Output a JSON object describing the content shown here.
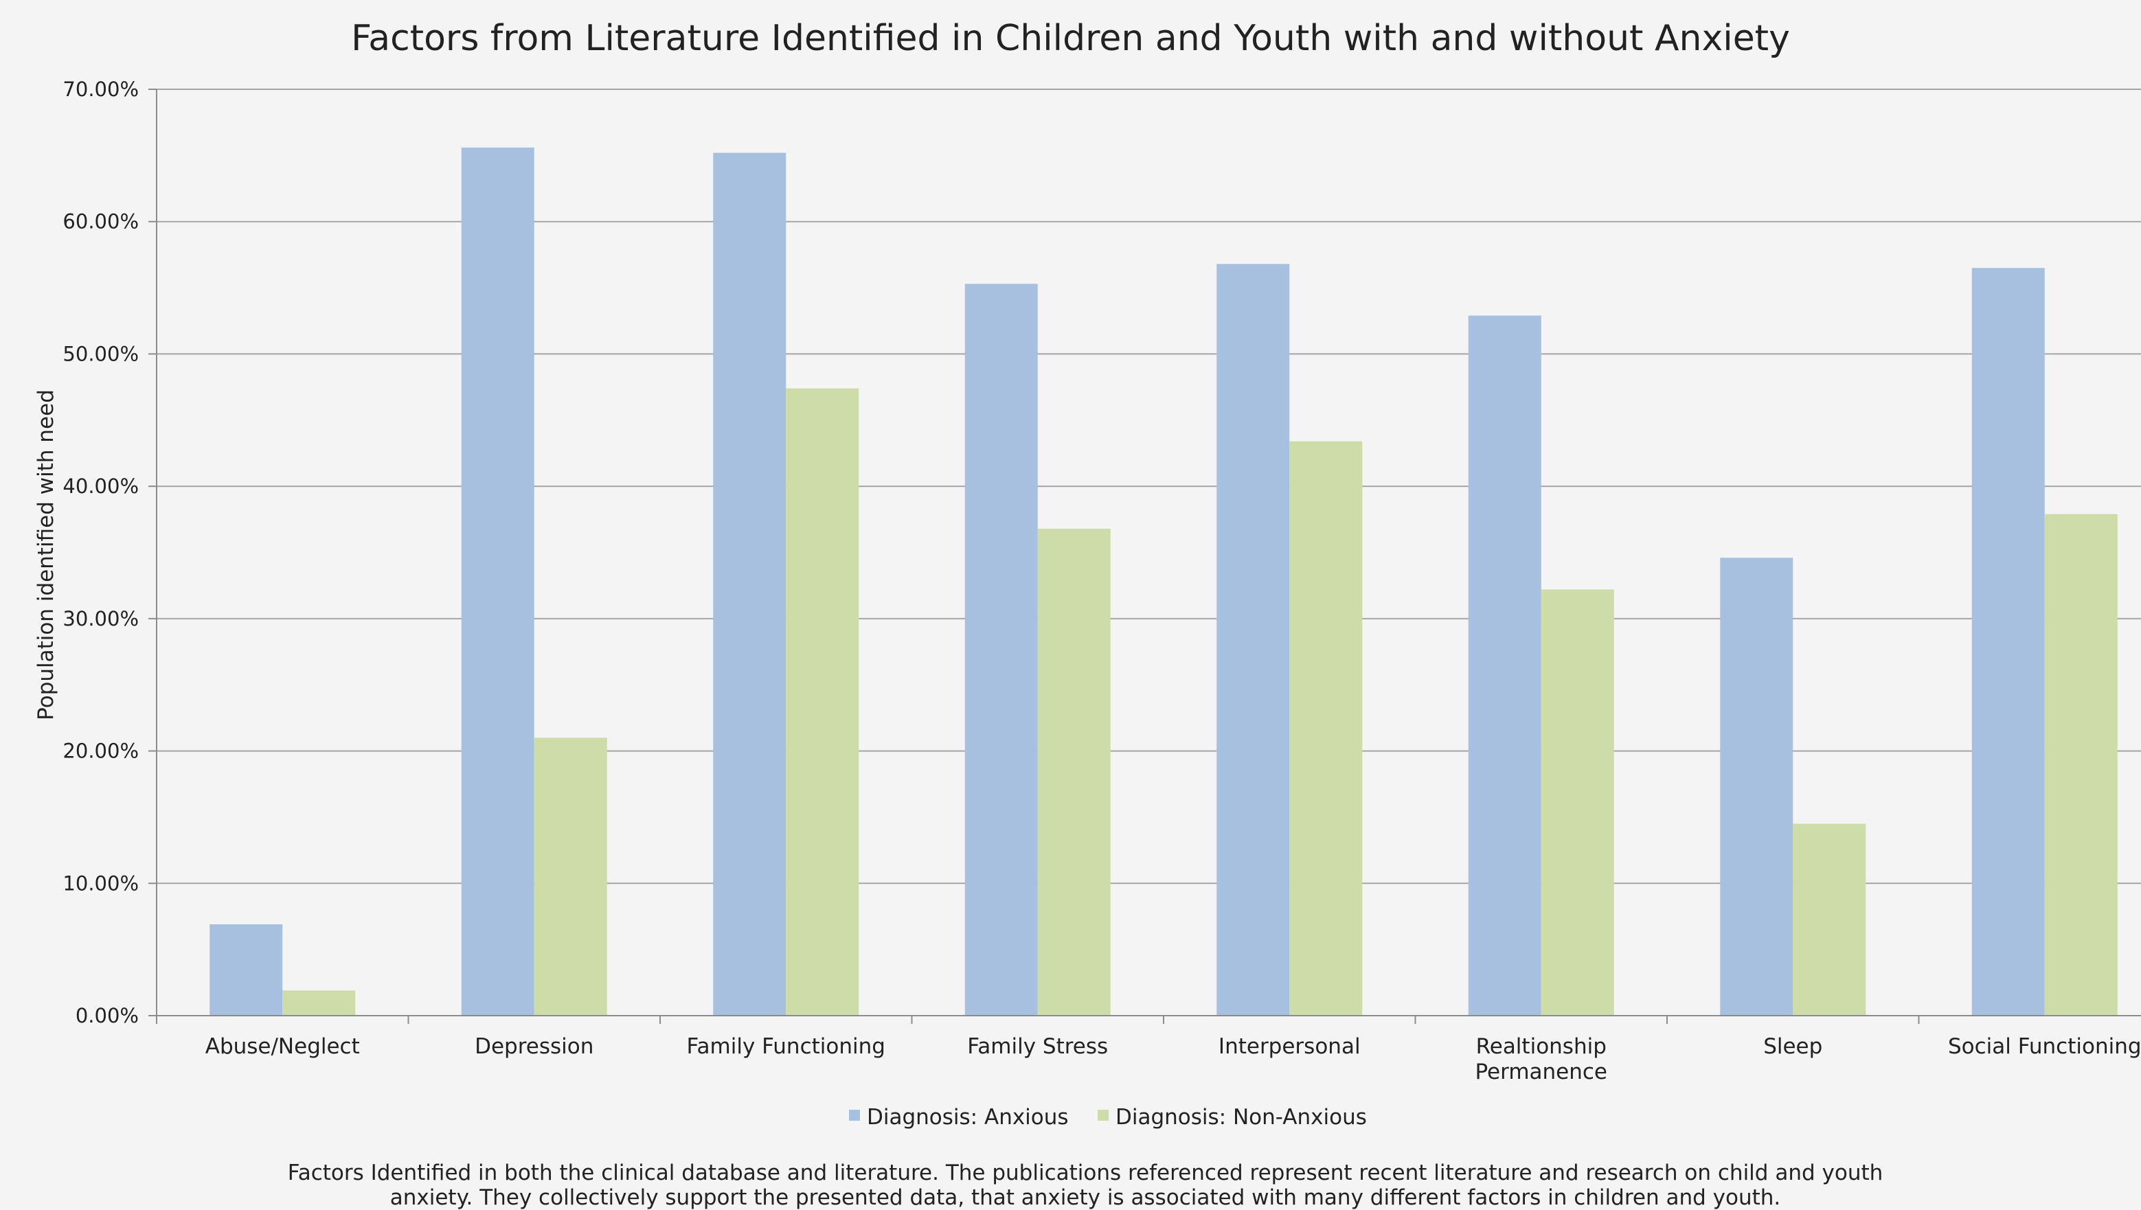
{
  "chart_data": {
    "type": "bar",
    "title": "Factors from Literature Identified in Children and Youth with and without Anxiety",
    "ylabel": "Population identified with need",
    "xlabel": "",
    "ylim": [
      0,
      70
    ],
    "y_ticks": [
      "0.00%",
      "10.00%",
      "20.00%",
      "30.00%",
      "40.00%",
      "50.00%",
      "60.00%",
      "70.00%"
    ],
    "grid": true,
    "legend_position": "bottom",
    "categories": [
      [
        "Abuse/Neglect"
      ],
      [
        "Depression"
      ],
      [
        "Family Functioning"
      ],
      [
        "Family Stress"
      ],
      [
        "Interpersonal"
      ],
      [
        "Realtionship",
        "Permanence"
      ],
      [
        "Sleep"
      ],
      [
        "Social Functioning"
      ]
    ],
    "series": [
      {
        "name": "Diagnosis: Anxious",
        "color": "#a7c0df",
        "values": [
          6.9,
          65.6,
          65.2,
          55.3,
          56.8,
          52.9,
          34.6,
          56.5
        ]
      },
      {
        "name": "Diagnosis: Non-Anxious",
        "color": "#cddca8",
        "values": [
          1.9,
          21.0,
          47.4,
          36.8,
          43.4,
          32.2,
          14.5,
          37.9
        ]
      }
    ]
  },
  "caption": {
    "line1": "Factors Identified in both the clinical database and literature. The publications referenced represent recent literature and research on child and youth",
    "line2": "anxiety. They collectively support the presented data, that anxiety is associated with many different factors in children and youth."
  }
}
